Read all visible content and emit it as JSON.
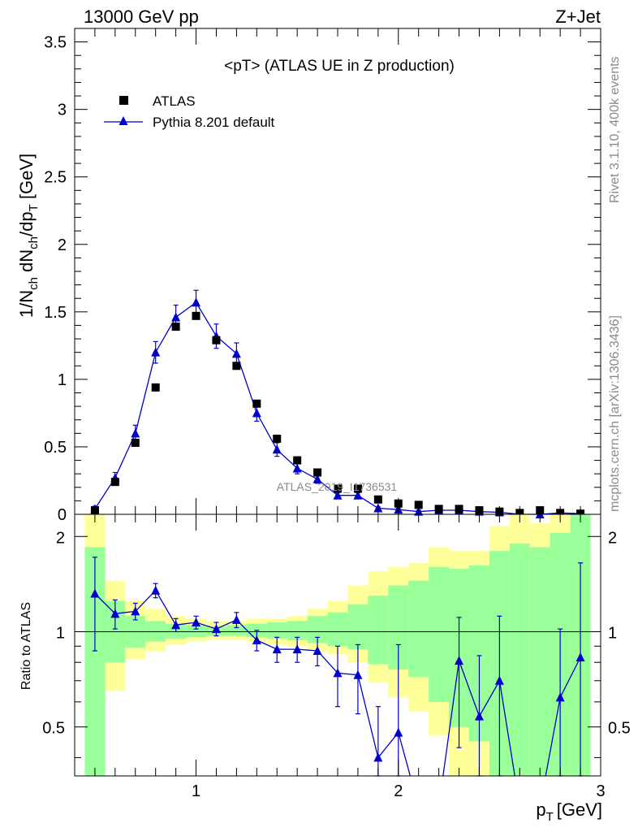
{
  "header": {
    "left": "13000 GeV pp",
    "right": "Z+Jet"
  },
  "side_labels": {
    "rivet": "Rivet 3.1.10,  400k events",
    "mcplots": "mcplots.cern.ch [arXiv:1306.3436]"
  },
  "chart_data": {
    "type": "scatter",
    "title": "<pT> (ATLAS UE in Z production)",
    "watermark": "ATLAS_2019_I1736531",
    "xlabel": "p",
    "xlabel_sub": "T",
    "xlabel_unit": "[GeV]",
    "ylabel": "1/N",
    "ylabel_sub1": "ch",
    "ylabel_mid": " dN",
    "ylabel_sub2": "ch",
    "ylabel_mid2": "/dp",
    "ylabel_sub3": "T",
    "ylabel_unit": " [GeV]",
    "ratio_ylabel": "Ratio to ATLAS",
    "xlim": [
      0.4,
      3.0
    ],
    "ylim": [
      0,
      3.6
    ],
    "ratio_ylim": [
      0.35,
      2.35
    ],
    "x_ticks": [
      "1",
      "2",
      "3"
    ],
    "y_ticks": [
      "0",
      "0.5",
      "1",
      "1.5",
      "2",
      "2.5",
      "3",
      "3.5"
    ],
    "ratio_ticks": [
      "0.5",
      "1",
      "2"
    ],
    "legend": {
      "placement": "top-left",
      "data_label": "ATLAS",
      "mc_label": "Pythia 8.201 default"
    },
    "colors": {
      "data": "#000000",
      "mc": "#0000cc",
      "band_inner": "#99ff99",
      "band_outer": "#ffff99"
    },
    "x": [
      0.5,
      0.6,
      0.7,
      0.8,
      0.9,
      1.0,
      1.1,
      1.2,
      1.3,
      1.4,
      1.5,
      1.6,
      1.7,
      1.8,
      1.9,
      2.0,
      2.1,
      2.2,
      2.3,
      2.4,
      2.5,
      2.6,
      2.7,
      2.8,
      2.9
    ],
    "series": [
      {
        "name": "ATLAS",
        "values": [
          0.03,
          0.24,
          0.53,
          0.94,
          1.39,
          1.47,
          1.29,
          1.1,
          0.82,
          0.56,
          0.4,
          0.31,
          0.19,
          0.19,
          0.11,
          0.08,
          0.07,
          0.04,
          0.04,
          0.03,
          0.02,
          0.01,
          0.03,
          0.01,
          0.005
        ]
      },
      {
        "name": "Pythia 8.201 default",
        "values": [
          0.04,
          0.27,
          0.6,
          1.2,
          1.46,
          1.57,
          1.32,
          1.19,
          0.75,
          0.48,
          0.34,
          0.26,
          0.14,
          0.14,
          0.045,
          0.035,
          0.02,
          0.03,
          0.03,
          0.02,
          0.015,
          0.0,
          0.0,
          0.01,
          0.005
        ],
        "errors": [
          0.02,
          0.04,
          0.06,
          0.08,
          0.09,
          0.09,
          0.09,
          0.08,
          0.06,
          0.05,
          0.04,
          0.03,
          0.02,
          0.02,
          0.01,
          0.01,
          0.01,
          0.01,
          0.01,
          0.01,
          0.01,
          0.0,
          0.0,
          0.01,
          0.005
        ]
      }
    ],
    "ratio": {
      "x": [
        0.5,
        0.6,
        0.7,
        0.8,
        0.9,
        1.0,
        1.1,
        1.2,
        1.3,
        1.4,
        1.5,
        1.6,
        1.7,
        1.8,
        1.9,
        2.0,
        2.3,
        2.4,
        2.5,
        2.8,
        2.9
      ],
      "values": [
        1.32,
        1.14,
        1.16,
        1.35,
        1.05,
        1.07,
        1.02,
        1.09,
        0.94,
        0.88,
        0.88,
        0.87,
        0.74,
        0.73,
        0.4,
        0.48,
        0.81,
        0.54,
        0.7,
        0.62,
        0.83
      ],
      "err_low": [
        0.45,
        0.12,
        0.07,
        0.07,
        0.05,
        0.05,
        0.05,
        0.06,
        0.07,
        0.08,
        0.08,
        0.09,
        0.16,
        0.18,
        0.15,
        0.2,
        0.38,
        0.3,
        0.4,
        0.35,
        0.55
      ],
      "err_high": [
        0.4,
        0.12,
        0.07,
        0.07,
        0.05,
        0.05,
        0.05,
        0.06,
        0.07,
        0.08,
        0.08,
        0.09,
        0.16,
        0.18,
        0.18,
        0.43,
        0.3,
        0.3,
        0.42,
        0.4,
        0.82
      ]
    },
    "bands": {
      "edges": [
        0.45,
        0.55,
        0.65,
        0.75,
        0.85,
        0.95,
        1.05,
        1.15,
        1.25,
        1.35,
        1.45,
        1.55,
        1.65,
        1.75,
        1.85,
        1.95,
        2.05,
        2.15,
        2.25,
        2.35,
        2.45,
        2.55,
        2.65,
        2.75,
        2.85,
        2.95
      ],
      "outer_low": [
        0.35,
        0.65,
        0.82,
        0.87,
        0.91,
        0.93,
        0.94,
        0.94,
        0.93,
        0.91,
        0.9,
        0.87,
        0.85,
        0.8,
        0.69,
        0.62,
        0.56,
        0.47,
        0.35,
        0.35,
        0.35,
        0.35,
        0.35,
        0.35,
        0.35
      ],
      "outer_high": [
        2.35,
        1.45,
        1.25,
        1.18,
        1.12,
        1.1,
        1.08,
        1.08,
        1.1,
        1.1,
        1.12,
        1.18,
        1.25,
        1.4,
        1.55,
        1.6,
        1.65,
        1.85,
        1.8,
        1.8,
        2.15,
        2.35,
        2.2,
        2.35,
        2.35
      ],
      "inner_low": [
        0.35,
        0.8,
        0.89,
        0.93,
        0.95,
        0.96,
        0.97,
        0.97,
        0.96,
        0.95,
        0.94,
        0.92,
        0.9,
        0.88,
        0.79,
        0.76,
        0.72,
        0.6,
        0.5,
        0.45,
        0.35,
        0.35,
        0.35,
        0.35,
        0.35
      ],
      "inner_high": [
        1.85,
        1.25,
        1.12,
        1.08,
        1.06,
        1.05,
        1.04,
        1.05,
        1.06,
        1.07,
        1.08,
        1.12,
        1.15,
        1.22,
        1.3,
        1.4,
        1.45,
        1.6,
        1.58,
        1.62,
        1.8,
        1.9,
        1.85,
        2.05,
        2.35
      ]
    }
  }
}
